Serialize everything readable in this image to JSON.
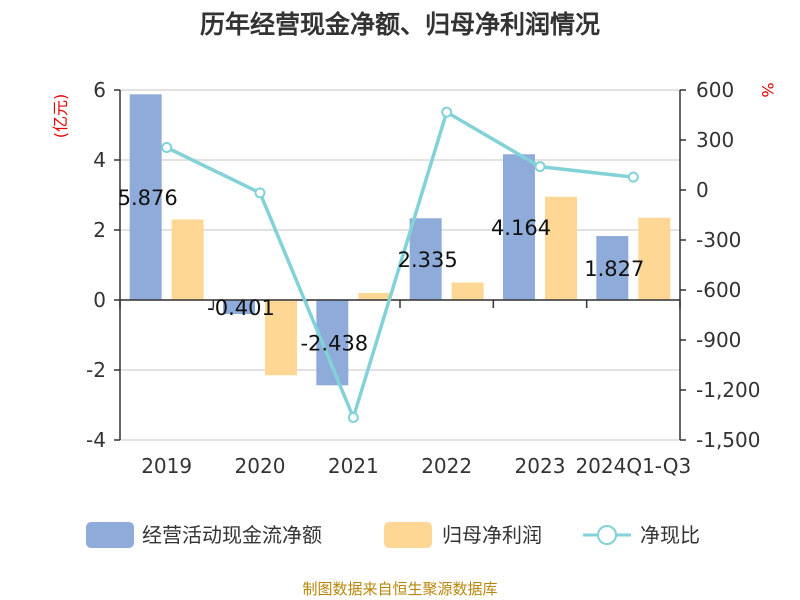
{
  "chart_data": {
    "type": "bar",
    "title": "历年经营现金净额、归母净利润情况",
    "categories": [
      "2019",
      "2020",
      "2021",
      "2022",
      "2023",
      "2024Q1-Q3"
    ],
    "y_left": {
      "unit": "(亿元)",
      "ylim": [
        -4,
        6
      ],
      "ticks": [
        "6",
        "4",
        "2",
        "0",
        "-2",
        "-4"
      ]
    },
    "y_right": {
      "unit": "%",
      "ylim": [
        -1500,
        600
      ],
      "ticks": [
        "600",
        "300",
        "0",
        "-300",
        "-600",
        "-900",
        "-1,200",
        "-1,500"
      ]
    },
    "series": [
      {
        "name": "经营活动现金流净额",
        "type": "bar",
        "axis": "left",
        "values": [
          5.876,
          -0.401,
          -2.438,
          2.335,
          4.164,
          1.827
        ],
        "labels": [
          "5.876",
          "-0.401",
          "-2.438",
          "2.335",
          "4.164",
          "1.827"
        ]
      },
      {
        "name": "归母净利润",
        "type": "bar",
        "axis": "left",
        "values": [
          2.3,
          -2.15,
          0.2,
          0.5,
          2.95,
          2.35
        ]
      },
      {
        "name": "净现比",
        "type": "line",
        "axis": "right",
        "values": [
          255,
          -17,
          -1365,
          467,
          140,
          77
        ]
      }
    ],
    "colors": {
      "bar1": "#8eabd9",
      "bar2": "#fed794",
      "line": "#82d2d8"
    },
    "grid": true,
    "legend_position": "bottom"
  },
  "footer": {
    "source": "制图数据来自恒生聚源数据库"
  }
}
